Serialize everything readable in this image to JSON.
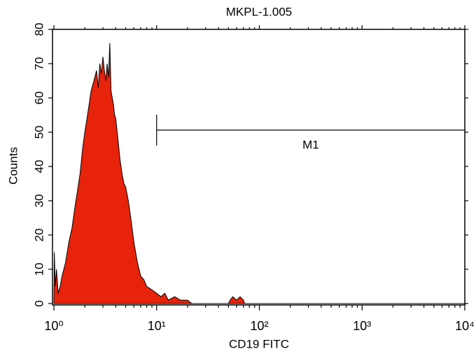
{
  "chart_data": {
    "type": "histogram-area",
    "title": "MKPL-1.005",
    "x_label": "CD19 FITC",
    "y_label": "Counts",
    "xscale": "log",
    "xlim": [
      1,
      10000
    ],
    "xticks": [
      {
        "value": 1,
        "label": "10⁰"
      },
      {
        "value": 10,
        "label": "10¹"
      },
      {
        "value": 100,
        "label": "10²"
      },
      {
        "value": 1000,
        "label": "10³"
      },
      {
        "value": 10000,
        "label": "10⁴"
      }
    ],
    "xminorticks": [
      2,
      3,
      4,
      5,
      6,
      7,
      8,
      9,
      20,
      30,
      40,
      50,
      60,
      70,
      80,
      90,
      200,
      300,
      400,
      500,
      600,
      700,
      800,
      900,
      2000,
      3000,
      4000,
      5000,
      6000,
      7000,
      8000,
      9000
    ],
    "ylim": [
      0,
      80
    ],
    "yticks": [
      0,
      10,
      20,
      30,
      40,
      50,
      60,
      70,
      80
    ],
    "color": "#e8230c",
    "x": [
      1.0,
      1.01,
      1.03,
      1.06,
      1.1,
      1.15,
      1.2,
      1.3,
      1.4,
      1.5,
      1.6,
      1.7,
      1.8,
      1.9,
      2.0,
      2.1,
      2.2,
      2.3,
      2.4,
      2.5,
      2.6,
      2.7,
      2.8,
      2.9,
      3.0,
      3.1,
      3.2,
      3.3,
      3.4,
      3.5,
      3.6,
      3.7,
      3.8,
      3.9,
      4.0,
      4.2,
      4.4,
      4.6,
      4.8,
      5.0,
      5.3,
      5.6,
      6.0,
      6.5,
      7.0,
      7.5,
      8.0,
      9.0,
      10,
      11,
      12,
      13,
      15,
      17,
      20,
      22,
      50,
      52,
      55,
      60,
      65,
      70,
      72,
      10000
    ],
    "values": [
      0,
      15,
      5,
      10,
      3,
      5,
      8,
      12,
      18,
      22,
      28,
      33,
      38,
      45,
      50,
      54,
      58,
      62,
      64,
      66,
      68,
      63,
      70,
      67,
      72,
      68,
      65,
      70,
      66,
      76,
      62,
      60,
      58,
      55,
      54,
      48,
      42,
      38,
      35,
      34,
      30,
      25,
      18,
      12,
      8,
      7,
      5,
      4,
      3,
      2,
      3,
      1,
      2,
      1,
      1,
      0,
      0,
      1,
      2,
      1,
      2,
      1,
      0,
      0
    ],
    "gate": {
      "label": "M1",
      "range": [
        10,
        10000
      ]
    }
  }
}
